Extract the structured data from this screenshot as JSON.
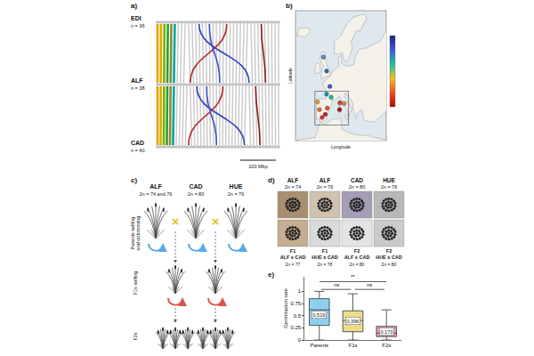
{
  "panels": {
    "a": {
      "letter": "a)",
      "genomes": [
        {
          "name": "EDI",
          "n": 36,
          "n_label": "n = 36"
        },
        {
          "name": "ALF",
          "n": 38,
          "n_label": "n = 38"
        },
        {
          "name": "CAD",
          "n": 40,
          "n_label": "n = 40"
        }
      ],
      "scale_bar": "100 Mbp"
    },
    "b": {
      "letter": "b)",
      "x_label": "Longitude",
      "y_label": "Latitude",
      "sites": [
        {
          "lon": -3.5,
          "lat": 57.0,
          "color": "#4a90d9"
        },
        {
          "lon": -1.0,
          "lat": 52.5,
          "color": "#2b6cb8"
        },
        {
          "lon": 1.5,
          "lat": 47.5,
          "color": "#3b5bdb"
        },
        {
          "lon": -1.0,
          "lat": 45.0,
          "color": "#00a0c0"
        },
        {
          "lon": 2.5,
          "lat": 44.0,
          "color": "#20c0a0"
        },
        {
          "lon": -8.0,
          "lat": 42.5,
          "color": "#f0a020"
        },
        {
          "lon": -6.5,
          "lat": 40.0,
          "color": "#f07020"
        },
        {
          "lon": -4.5,
          "lat": 37.5,
          "color": "#e03020"
        },
        {
          "lon": -2.0,
          "lat": 38.5,
          "color": "#d01818"
        },
        {
          "lon": -0.5,
          "lat": 40.5,
          "color": "#f05020"
        },
        {
          "lon": 9.0,
          "lat": 40.0,
          "color": "#c00000"
        },
        {
          "lon": 9.2,
          "lat": 42.2,
          "color": "#e04020"
        },
        {
          "lon": 12.5,
          "lat": 42.0,
          "color": "#f08030"
        }
      ]
    },
    "c": {
      "letter": "c)",
      "parents": [
        {
          "name": "ALF",
          "chromosomes": "2n = 74 and 76"
        },
        {
          "name": "CAD",
          "chromosomes": "2n = 80"
        },
        {
          "name": "HUE",
          "chromosomes": "2n = 76"
        }
      ],
      "cross": "×",
      "generations": [
        "Parents selfing and outcrossing",
        "F1s selfing",
        "F2s"
      ]
    },
    "d": {
      "letter": "d)",
      "columns": [
        {
          "name": "ALF",
          "chromosomes": "2n = 74",
          "hybrid": "F1 ALF x CAD",
          "formula": "2n = 77"
        },
        {
          "name": "ALF",
          "chromosomes": "2n = 76",
          "hybrid": "F1 HUE x CAD",
          "formula": "2n = 78"
        },
        {
          "name": "CAD",
          "chromosomes": "2n = 80",
          "hybrid": "F2 ALF x CAD",
          "formula": "2n = 80"
        },
        {
          "name": "HUE",
          "chromosomes": "2n = 76",
          "hybrid": "F2 HUE x CAD",
          "formula": "2n = 80"
        }
      ]
    },
    "e": {
      "letter": "e)"
    }
  },
  "chart_data": {
    "type": "box",
    "y_label": "Germination rate",
    "categories": [
      "Parents",
      "F1s",
      "F2s"
    ],
    "lowerfence": [
      0.0,
      0.0,
      0.0
    ],
    "q1": [
      0.3,
      0.17,
      0.07
    ],
    "median": [
      0.62,
      0.4,
      0.14
    ],
    "q3": [
      0.85,
      0.6,
      0.28
    ],
    "upperfence": [
      1.0,
      0.95,
      0.62
    ],
    "means": [
      0.519,
      0.396,
      0.173
    ],
    "colors": [
      "#8fd0ec",
      "#ecdc8c",
      "#ec9cac"
    ],
    "ylim": [
      0,
      1.3
    ],
    "yticks": [
      0,
      0.25,
      0.5,
      0.75,
      1
    ],
    "grid": false,
    "comparisons": [
      {
        "from": "Parents",
        "to": "F1s",
        "label": "ns"
      },
      {
        "from": "F1s",
        "to": "F2s",
        "label": "ns"
      },
      {
        "from": "Parents",
        "to": "F2s",
        "label": "**"
      }
    ]
  }
}
